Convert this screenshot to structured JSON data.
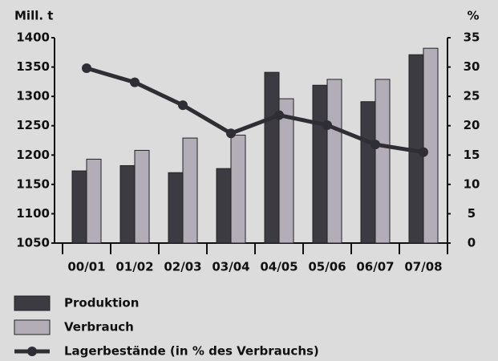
{
  "chart_data": {
    "type": "bar",
    "y_label": "Mill. t",
    "y2_label": "%",
    "categories": [
      "00/01",
      "01/02",
      "02/03",
      "03/04",
      "04/05",
      "05/06",
      "06/07",
      "07/08"
    ],
    "series": [
      {
        "name": "Produktion",
        "color": "#3c3b42",
        "values": [
          1173,
          1182,
          1170,
          1177,
          1341,
          1319,
          1291,
          1371
        ]
      },
      {
        "name": "Verbrauch",
        "color": "#b3adb8",
        "values": [
          1193,
          1208,
          1229,
          1234,
          1296,
          1329,
          1329,
          1382
        ]
      },
      {
        "name": "Lagerbestände (in % des Verbrauchs)",
        "color": "#2f2e34",
        "type": "line",
        "axis": "y2",
        "values": [
          29.8,
          27.4,
          23.5,
          18.7,
          21.8,
          20.1,
          16.8,
          15.5
        ]
      }
    ],
    "ylim": [
      1050,
      1400
    ],
    "yticks": [
      1050,
      1100,
      1150,
      1200,
      1250,
      1300,
      1350,
      1400
    ],
    "y2lim": [
      0,
      35
    ],
    "y2ticks": [
      0,
      5,
      10,
      15,
      20,
      25,
      30,
      35
    ]
  }
}
